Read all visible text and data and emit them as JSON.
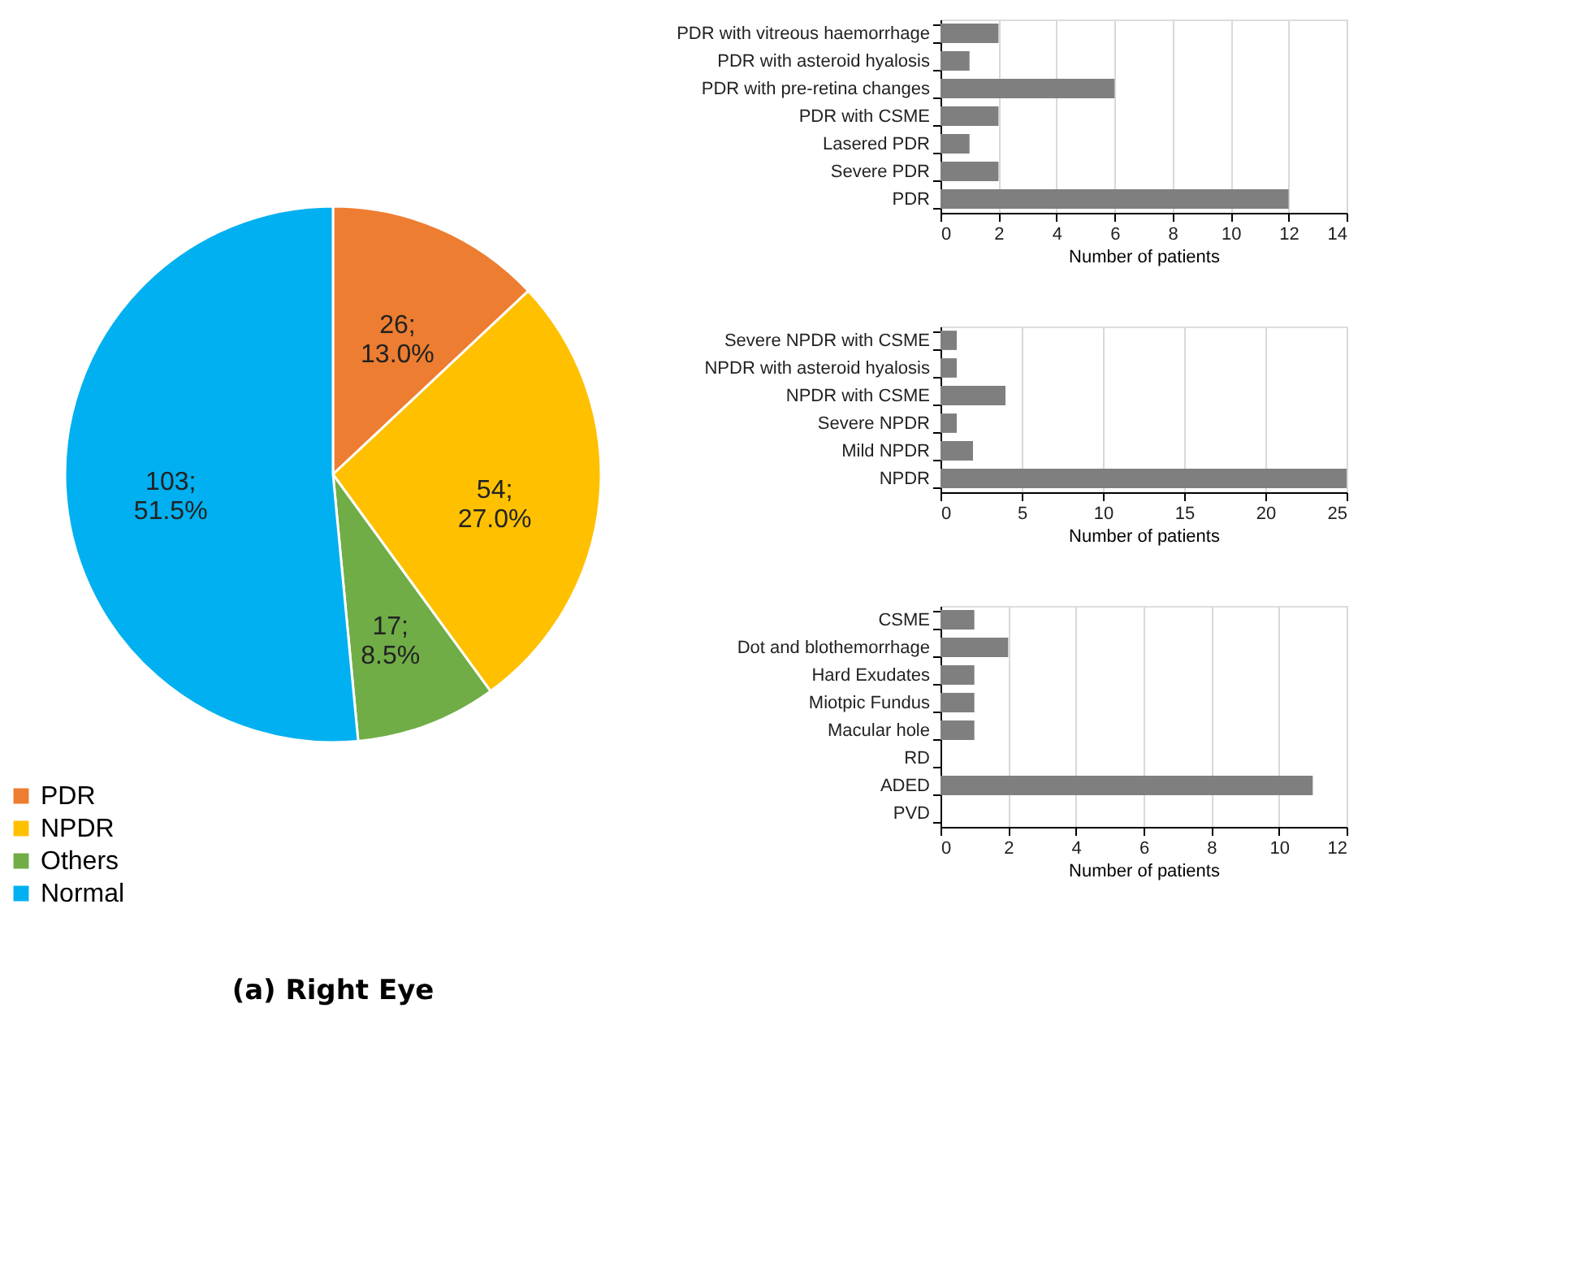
{
  "chart_data": [
    {
      "type": "pie",
      "categories": [
        "PDR",
        "NPDR",
        "Others",
        "Normal"
      ],
      "values": [
        26,
        54,
        17,
        103
      ],
      "colors": [
        "#ed7d31",
        "#ffc000",
        "#70ad47",
        "#00b0f0"
      ],
      "value_labels": [
        "26;\n13.0%",
        "54;\n27.0%",
        "17;\n8.5%",
        "103;\n51.5%"
      ],
      "legend": "bottom left",
      "annotations": [
        "(a) Right Eye"
      ]
    },
    {
      "type": "bar",
      "orientation": "horizontal",
      "categories": [
        "PDR with vitreous haemorrhage",
        "PDR with asteroid hyalosis",
        "PDR with pre-retina changes",
        "PDR with CSME",
        "Lasered PDR",
        "Severe PDR",
        "PDR"
      ],
      "values": [
        2,
        1,
        6,
        2,
        1,
        2,
        12
      ],
      "color": "#7f7f7f",
      "xlabel": "Number  of patients",
      "xlim": [
        0,
        14
      ],
      "xticks": [
        0,
        2,
        4,
        6,
        8,
        10,
        12,
        14
      ],
      "grid": "x"
    },
    {
      "type": "bar",
      "orientation": "horizontal",
      "categories": [
        "Severe NPDR with CSME",
        "NPDR with asteroid hyalosis",
        "NPDR with CSME",
        "Severe NPDR",
        "Mild NPDR",
        "NPDR"
      ],
      "values": [
        1,
        1,
        4,
        1,
        2,
        25
      ],
      "color": "#7f7f7f",
      "xlabel": "Number  of patients",
      "xlim": [
        0,
        25
      ],
      "xticks": [
        0,
        5,
        10,
        15,
        20,
        25
      ],
      "grid": "x"
    },
    {
      "type": "bar",
      "orientation": "horizontal",
      "categories": [
        "CSME",
        "Dot and blothemorrhage",
        "Hard Exudates",
        "Miotpic Fundus",
        "Macular hole",
        "RD",
        "ADED",
        "PVD"
      ],
      "values": [
        1,
        2,
        1,
        1,
        1,
        0,
        11,
        0
      ],
      "color": "#7f7f7f",
      "xlabel": "Number  of patients",
      "xlim": [
        0,
        12
      ],
      "xticks": [
        0,
        2,
        4,
        6,
        8,
        10,
        12
      ],
      "grid": "x"
    }
  ]
}
